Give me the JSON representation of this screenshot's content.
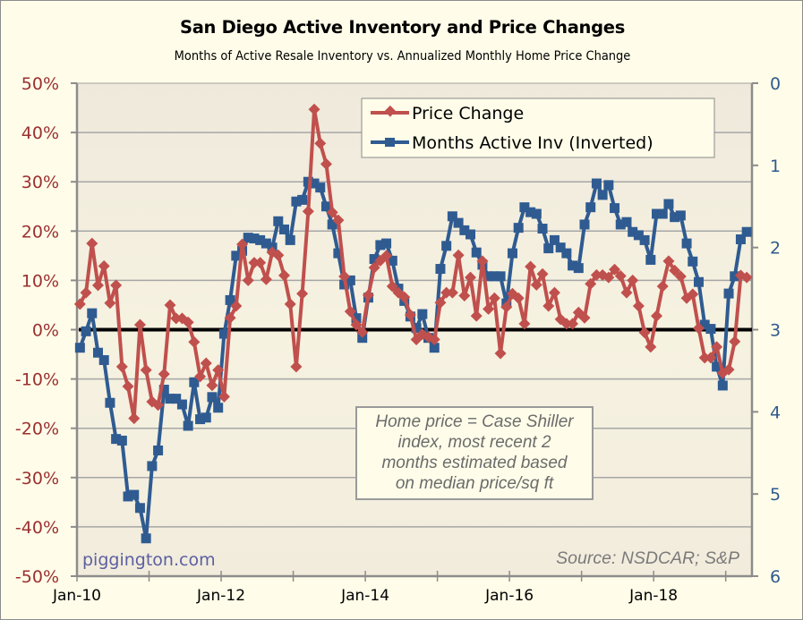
{
  "chart_data": {
    "type": "line",
    "title": "San Diego Active Inventory and Price Changes",
    "subtitle": "Months of Active Resale Inventory vs. Annualized Monthly Home Price Change",
    "x_start": "Jan-10",
    "x_end": "Apr-19",
    "x_tick_labels": [
      "Jan-10",
      "Jan-12",
      "Jan-14",
      "Jan-16",
      "Jan-18"
    ],
    "x_tick_label_positions_months": [
      0,
      24,
      48,
      72,
      96
    ],
    "left_axis": {
      "label": "Price Change",
      "range": [
        -0.5,
        0.5
      ],
      "ticks": [
        "50%",
        "40%",
        "30%",
        "20%",
        "10%",
        "0%",
        "-10%",
        "-20%",
        "-30%",
        "-40%",
        "-50%"
      ],
      "tick_values": [
        0.5,
        0.4,
        0.3,
        0.2,
        0.1,
        0,
        -0.1,
        -0.2,
        -0.3,
        -0.4,
        -0.5
      ]
    },
    "right_axis": {
      "label": "Months Active Inv (Inverted)",
      "range": [
        0,
        6
      ],
      "inverted": true,
      "ticks": [
        "0",
        "1",
        "2",
        "3",
        "4",
        "5",
        "6"
      ],
      "tick_values": [
        0,
        1,
        2,
        3,
        4,
        5,
        6
      ]
    },
    "grid": true,
    "zero_line": true,
    "legend": {
      "position": "top-right",
      "entries": [
        "Price Change",
        "Months Active Inv (Inverted)"
      ]
    },
    "series": [
      {
        "name": "Price Change",
        "axis": "left",
        "unit": "percent",
        "color": "#c0504d",
        "marker": "diamond",
        "values": [
          5.2,
          7.5,
          17.5,
          9.0,
          12.9,
          5.4,
          9.0,
          -7.5,
          -11.5,
          -18.0,
          1.0,
          -8.2,
          -14.6,
          -15.3,
          -9.0,
          5.0,
          2.3,
          2.3,
          1.5,
          -2.5,
          -9.5,
          -6.8,
          -11.3,
          -8.2,
          -13.6,
          2.4,
          4.8,
          17.3,
          10.0,
          13.6,
          13.6,
          10.2,
          15.7,
          15.1,
          11.0,
          5.2,
          -7.5,
          7.3,
          24.0,
          44.7,
          37.8,
          33.6,
          23.8,
          22.2,
          10.8,
          3.7,
          1.0,
          -0.5,
          7.0,
          12.6,
          14.0,
          15.0,
          8.8,
          7.5,
          6.6,
          3.0,
          -2.0,
          -0.9,
          -1.5,
          -2.0,
          5.5,
          7.5,
          7.5,
          15.1,
          6.9,
          10.6,
          2.8,
          13.9,
          4.2,
          6.4,
          -4.8,
          4.6,
          7.3,
          6.4,
          1.2,
          12.8,
          9.1,
          11.3,
          4.8,
          7.5,
          2.1,
          1.2,
          1.2,
          3.5,
          2.4,
          9.3,
          11.1,
          11.1,
          10.6,
          12.2,
          10.9,
          7.5,
          10.0,
          4.8,
          -0.6,
          -3.5,
          2.8,
          8.8,
          13.9,
          12.0,
          10.8,
          6.4,
          7.2,
          0.3,
          -5.7,
          -5.7,
          -3.5,
          -8.8,
          -8.1,
          -2.4,
          11.0,
          10.6
        ]
      },
      {
        "name": "Months Active Inv (Inverted)",
        "axis": "right",
        "unit": "months",
        "color": "#2f5b91",
        "marker": "square",
        "values": [
          3.22,
          3.02,
          2.8,
          3.28,
          3.37,
          3.89,
          4.33,
          4.35,
          5.03,
          5.01,
          5.17,
          5.54,
          4.66,
          4.47,
          3.73,
          3.84,
          3.84,
          3.91,
          4.17,
          3.64,
          4.09,
          4.07,
          3.82,
          3.95,
          3.05,
          2.64,
          2.1,
          2.04,
          1.88,
          1.89,
          1.91,
          1.95,
          2.0,
          1.68,
          1.78,
          1.91,
          1.44,
          1.42,
          1.2,
          1.22,
          1.27,
          1.5,
          1.72,
          2.07,
          2.45,
          2.4,
          2.86,
          3.1,
          2.61,
          2.14,
          1.97,
          1.95,
          2.16,
          2.5,
          2.65,
          2.84,
          2.98,
          2.81,
          3.1,
          3.22,
          2.26,
          1.98,
          1.62,
          1.7,
          1.79,
          1.84,
          2.06,
          2.21,
          2.35,
          2.35,
          2.35,
          2.68,
          2.07,
          1.76,
          1.51,
          1.57,
          1.59,
          1.77,
          2.01,
          1.91,
          2.0,
          2.07,
          2.22,
          2.25,
          1.72,
          1.51,
          1.22,
          1.36,
          1.24,
          1.52,
          1.72,
          1.69,
          1.81,
          1.85,
          1.91,
          2.15,
          1.59,
          1.59,
          1.47,
          1.63,
          1.61,
          1.95,
          2.17,
          2.42,
          2.94,
          2.99,
          3.45,
          3.68,
          2.56,
          2.35,
          1.9,
          1.81
        ]
      }
    ],
    "annotations": {
      "note": [
        "Home price = Case Shiller",
        "index, most recent 2",
        "months estimated based",
        "on median price/sq ft"
      ],
      "watermark": "piggington.com",
      "source": "Source: NSDCAR; S&P"
    }
  }
}
